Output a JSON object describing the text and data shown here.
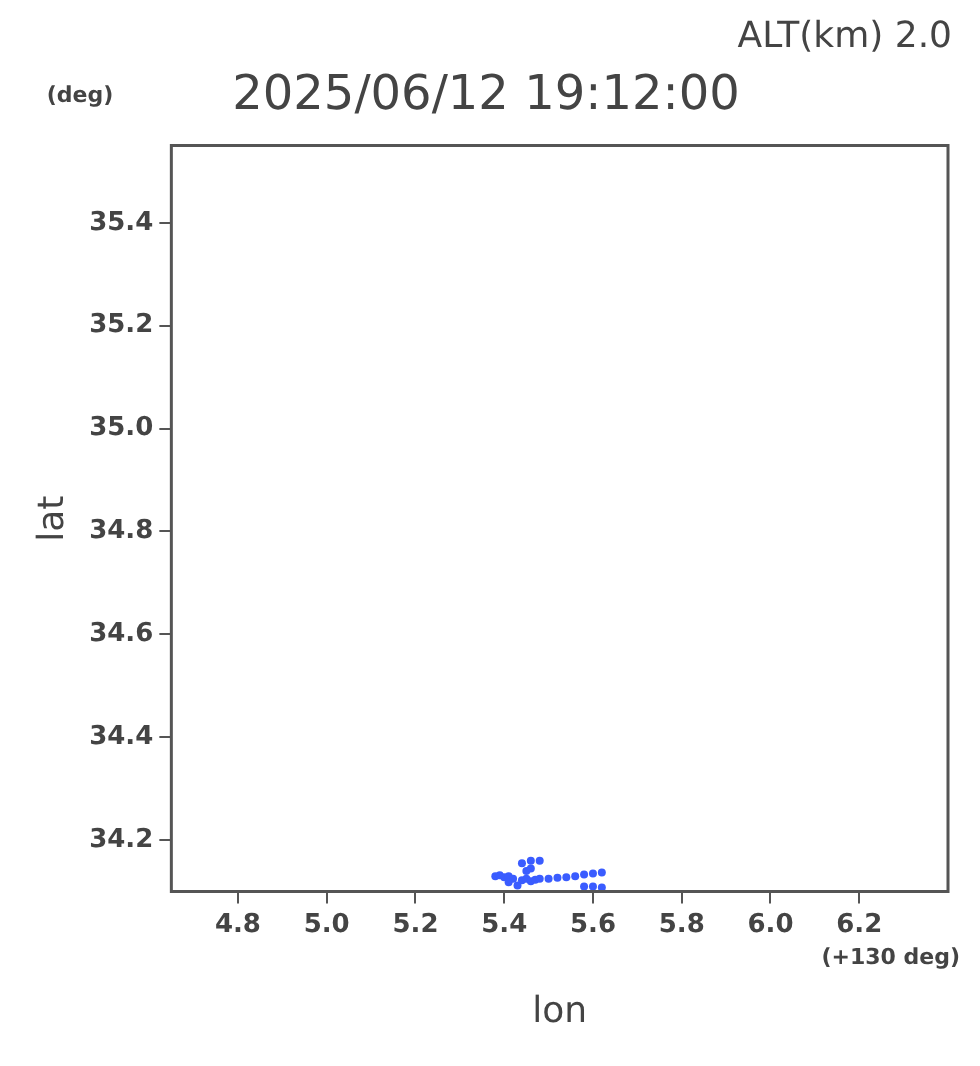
{
  "chart_data": {
    "type": "scatter",
    "title": "2025/06/12 19:12:00",
    "xlabel": "lon",
    "ylabel": "lat",
    "annotations": [
      "ALT(km) 2.0",
      "(deg)",
      "(+130 deg)"
    ],
    "xlim": [
      4.65,
      6.4
    ],
    "xticks": [
      4.8,
      {
        "value": 5,
        "label": "5.0"
      },
      5.2,
      5.4,
      5.6,
      5.8,
      {
        "value": 6,
        "label": "6.0"
      },
      6.2
    ],
    "ylim": [
      34.1,
      35.55
    ],
    "yticks": [
      34.2,
      34.4,
      34.6,
      34.8,
      {
        "value": 35,
        "label": "35.0"
      },
      35.2,
      35.4
    ],
    "grid": false,
    "legend": false,
    "marker": "circle",
    "series": [
      {
        "color": "#3a5cff",
        "x": [
          5.38,
          5.39,
          5.4,
          5.41,
          5.42,
          5.44,
          5.45,
          5.46,
          5.47,
          5.48,
          5.5,
          5.52,
          5.54,
          5.56,
          5.58,
          5.6,
          5.62,
          5.44,
          5.46,
          5.48,
          5.46,
          5.45,
          5.58,
          5.6,
          5.62,
          5.41,
          5.43
        ],
        "values": [
          34.13,
          34.132,
          34.128,
          34.13,
          34.125,
          34.122,
          34.125,
          34.12,
          34.123,
          34.125,
          34.125,
          34.127,
          34.128,
          34.13,
          34.133,
          34.135,
          34.137,
          34.155,
          34.16,
          34.16,
          34.145,
          34.14,
          34.11,
          34.11,
          34.108,
          34.118,
          34.112
        ]
      }
    ]
  }
}
